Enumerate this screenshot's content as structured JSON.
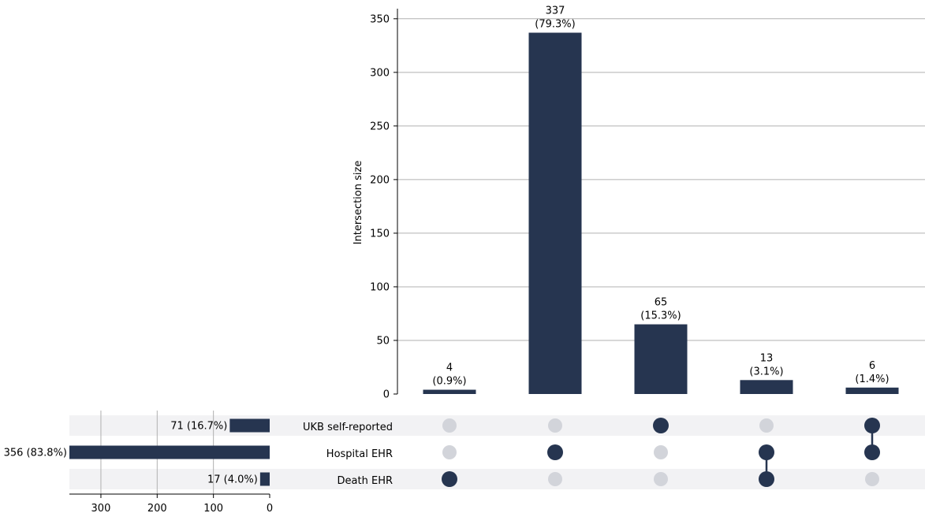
{
  "chart_data": {
    "type": "bar",
    "variant": "upset",
    "colors": {
      "bar": "#263550",
      "dot_active": "#263550",
      "dot_inactive": "#d2d4da",
      "row_stripe": "#f2f2f4",
      "grid": "#b0b0b0"
    },
    "intersections": {
      "ylabel": "Intersection size",
      "ylim": [
        0,
        355
      ],
      "yticks": [
        0,
        50,
        100,
        150,
        200,
        250,
        300,
        350
      ],
      "grid": true,
      "bars": [
        {
          "value": 4,
          "label_value": "4",
          "label_pct": "(0.9%)",
          "members": [
            false,
            false,
            true
          ]
        },
        {
          "value": 337,
          "label_value": "337",
          "label_pct": "(79.3%)",
          "members": [
            false,
            true,
            false
          ]
        },
        {
          "value": 65,
          "label_value": "65",
          "label_pct": "(15.3%)",
          "members": [
            true,
            false,
            false
          ]
        },
        {
          "value": 13,
          "label_value": "13",
          "label_pct": "(3.1%)",
          "members": [
            false,
            true,
            true
          ]
        },
        {
          "value": 6,
          "label_value": "6",
          "label_pct": "(1.4%)",
          "members": [
            true,
            true,
            false
          ]
        }
      ]
    },
    "sets": {
      "xlim": [
        0,
        356
      ],
      "xticks": [
        300,
        200,
        100,
        0
      ],
      "grid": true,
      "items": [
        {
          "name": "UKB self-reported",
          "size": 71,
          "label": "71 (16.7%)"
        },
        {
          "name": "Hospital EHR",
          "size": 356,
          "label": "356 (83.8%)"
        },
        {
          "name": "Death EHR",
          "size": 17,
          "label": "17 (4.0%)"
        }
      ]
    }
  }
}
